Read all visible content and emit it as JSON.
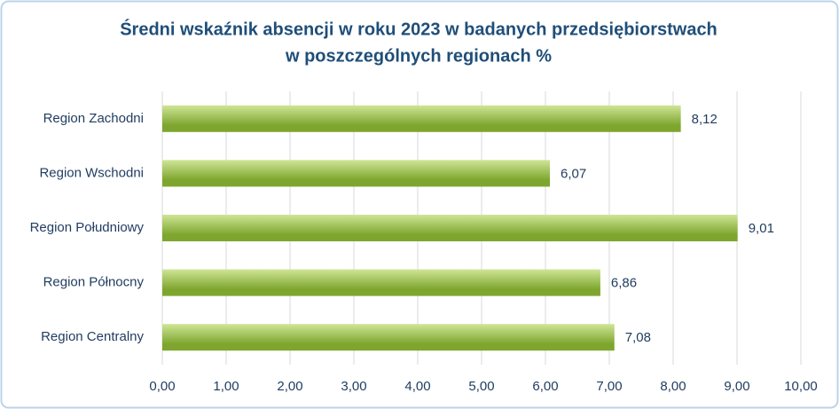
{
  "chart_data": {
    "type": "bar",
    "orientation": "horizontal",
    "title": [
      "Średni wskaźnik absencji w roku 2023 w badanych przedsiębiorstwach",
      "w poszczególnych regionach %"
    ],
    "categories": [
      "Region Zachodni",
      "Region Wschodni",
      "Region Południowy",
      "Region Północny",
      "Region Centralny"
    ],
    "values": [
      8.12,
      6.07,
      9.01,
      6.86,
      7.08
    ],
    "value_labels": [
      "8,12",
      "6,07",
      "9,01",
      "6,86",
      "7,08"
    ],
    "color": "#7ea62f",
    "xlim": [
      0,
      10
    ],
    "xticks": [
      {
        "value": 0,
        "label": "0,00"
      },
      {
        "value": 1,
        "label": "1,00"
      },
      {
        "value": 2,
        "label": "2,00"
      },
      {
        "value": 3,
        "label": "3,00"
      },
      {
        "value": 4,
        "label": "4,00"
      },
      {
        "value": 5,
        "label": "5,00"
      },
      {
        "value": 6,
        "label": "6,00"
      },
      {
        "value": 7,
        "label": "7,00"
      },
      {
        "value": 8,
        "label": "8,00"
      },
      {
        "value": 9,
        "label": "9,00"
      },
      {
        "value": 10,
        "label": "10,00"
      }
    ],
    "grid": true
  }
}
